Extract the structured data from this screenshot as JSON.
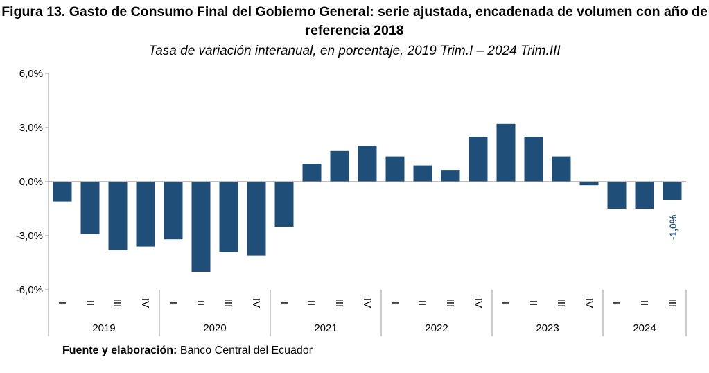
{
  "chart_data": {
    "type": "bar",
    "title": "Figura 13. Gasto de Consumo Final del Gobierno General: serie ajustada, encadenada de volumen con año de referencia 2018",
    "subtitle": "Tasa de variación interanual, en porcentaje, 2019 Trim.I – 2024 Trim.III",
    "xlabel": "",
    "ylabel": "",
    "ylim": [
      -6,
      6
    ],
    "yticks": [
      6,
      3,
      0,
      -3,
      -6
    ],
    "ytick_labels": [
      "6,0%",
      "3,0%",
      "0,0%",
      "-3,0%",
      "-6,0%"
    ],
    "grid": false,
    "bar_color": "#1f4e79",
    "years": [
      {
        "label": "2019",
        "quarters": [
          "I",
          "II",
          "III",
          "IV"
        ]
      },
      {
        "label": "2020",
        "quarters": [
          "I",
          "II",
          "III",
          "IV"
        ]
      },
      {
        "label": "2021",
        "quarters": [
          "I",
          "II",
          "III",
          "IV"
        ]
      },
      {
        "label": "2022",
        "quarters": [
          "I",
          "II",
          "III",
          "IV"
        ]
      },
      {
        "label": "2023",
        "quarters": [
          "I",
          "II",
          "III",
          "IV"
        ]
      },
      {
        "label": "2024",
        "quarters": [
          "I",
          "II",
          "III"
        ]
      }
    ],
    "values": [
      -1.1,
      -2.9,
      -3.8,
      -3.6,
      -3.2,
      -5.0,
      -3.9,
      -4.1,
      -2.5,
      1.0,
      1.7,
      2.0,
      1.4,
      0.9,
      0.65,
      2.5,
      3.2,
      2.5,
      1.4,
      -0.2,
      -1.5,
      -1.5,
      -1.0
    ],
    "annotation": {
      "index": 22,
      "label": "-1,0%"
    }
  },
  "source": {
    "label": "Fuente y elaboración:",
    "text": " Banco Central del Ecuador"
  }
}
